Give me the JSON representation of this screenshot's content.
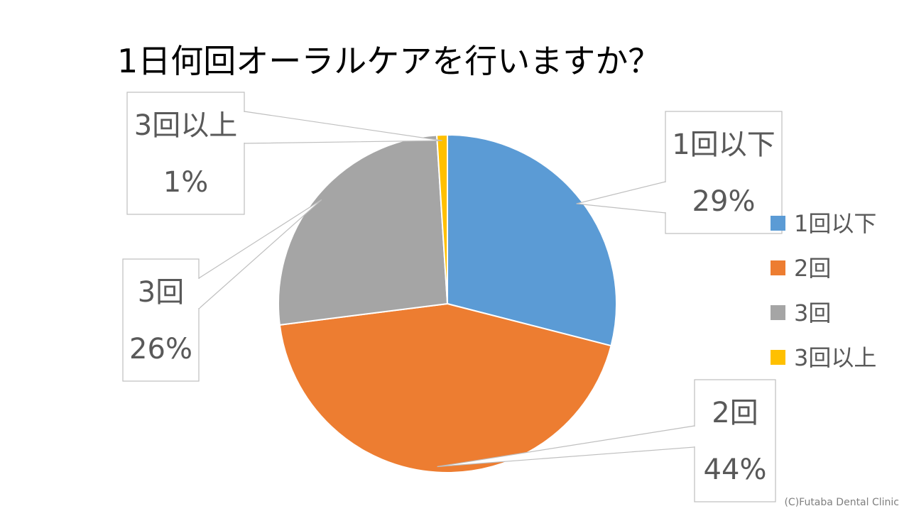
{
  "chart_data": {
    "type": "pie",
    "title": "1日何回オーラルケアを行いますか？",
    "slices": [
      {
        "label": "1回以下",
        "value": 29,
        "value_label": "29%",
        "color": "#5B9BD5"
      },
      {
        "label": "2回",
        "value": 44,
        "value_label": "44%",
        "color": "#ED7D31"
      },
      {
        "label": "3回",
        "value": 26,
        "value_label": "26%",
        "color": "#A5A5A5"
      },
      {
        "label": "3回以上",
        "value": 1,
        "value_label": "1%",
        "color": "#FFC000"
      }
    ],
    "legend": {
      "position": "right",
      "entries": [
        "1回以下",
        "2回",
        "3回",
        "3回以上"
      ]
    },
    "start_angle": "12 o'clock",
    "direction": "clockwise"
  },
  "footer": {
    "credit": "(C)Futaba Dental Clinic"
  }
}
